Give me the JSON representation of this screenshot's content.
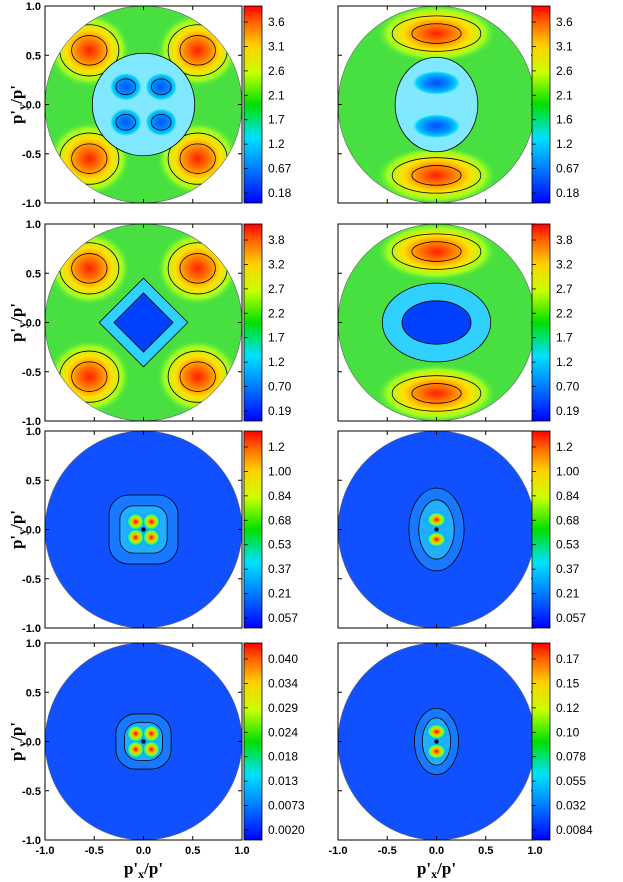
{
  "figure": {
    "axis_labels": {
      "ylabel_main": "p'",
      "ylabel_sub": "y",
      "ylabel_tail": "/p'",
      "xlabel_main": "p'",
      "xlabel_sub": "x",
      "xlabel_tail": "/p'"
    },
    "y_ticks": [
      "1.0",
      "0.5",
      "0.0",
      "-0.5",
      "-1.0"
    ],
    "x_ticks": [
      "-1.0",
      "-0.5",
      "0.0",
      "0.5",
      "1.0"
    ]
  },
  "chart_data": [
    {
      "type": "heatmap",
      "id": "r1c1",
      "pattern": "lobes4_center",
      "xlim": [
        -1,
        1
      ],
      "ylim": [
        -1,
        1
      ],
      "colorbar_ticks": [
        "3.6",
        "3.1",
        "2.6",
        "2.1",
        "1.7",
        "1.2",
        "0.67",
        "0.18"
      ]
    },
    {
      "type": "heatmap",
      "id": "r1c2",
      "pattern": "lobes2_center",
      "xlim": [
        -1,
        1
      ],
      "ylim": [
        -1,
        1
      ],
      "colorbar_ticks": [
        "3.6",
        "3.1",
        "2.6",
        "2.1",
        "1.6",
        "1.2",
        "0.67",
        "0.18"
      ]
    },
    {
      "type": "heatmap",
      "id": "r2c1",
      "pattern": "lobes4_diamond",
      "xlim": [
        -1,
        1
      ],
      "ylim": [
        -1,
        1
      ],
      "colorbar_ticks": [
        "3.8",
        "3.2",
        "2.7",
        "2.2",
        "1.7",
        "1.2",
        "0.70",
        "0.19"
      ]
    },
    {
      "type": "heatmap",
      "id": "r2c2",
      "pattern": "lobes2_ellipse",
      "xlim": [
        -1,
        1
      ],
      "ylim": [
        -1,
        1
      ],
      "colorbar_ticks": [
        "3.8",
        "3.2",
        "2.7",
        "2.2",
        "1.7",
        "1.2",
        "0.70",
        "0.19"
      ]
    },
    {
      "type": "heatmap",
      "id": "r3c1",
      "pattern": "center4_wide",
      "xlim": [
        -1,
        1
      ],
      "ylim": [
        -1,
        1
      ],
      "colorbar_ticks": [
        "1.2",
        "1.00",
        "0.84",
        "0.68",
        "0.53",
        "0.37",
        "0.21",
        "0.057"
      ]
    },
    {
      "type": "heatmap",
      "id": "r3c2",
      "pattern": "center2_wide",
      "xlim": [
        -1,
        1
      ],
      "ylim": [
        -1,
        1
      ],
      "colorbar_ticks": [
        "1.2",
        "1.00",
        "0.84",
        "0.68",
        "0.53",
        "0.37",
        "0.21",
        "0.057"
      ]
    },
    {
      "type": "heatmap",
      "id": "r4c1",
      "pattern": "center4_narrow",
      "xlim": [
        -1,
        1
      ],
      "ylim": [
        -1,
        1
      ],
      "colorbar_ticks": [
        "0.040",
        "0.034",
        "0.029",
        "0.024",
        "0.018",
        "0.013",
        "0.0073",
        "0.0020"
      ]
    },
    {
      "type": "heatmap",
      "id": "r4c2",
      "pattern": "center2_narrow",
      "xlim": [
        -1,
        1
      ],
      "ylim": [
        -1,
        1
      ],
      "colorbar_ticks": [
        "0.17",
        "0.15",
        "0.12",
        "0.10",
        "0.078",
        "0.055",
        "0.032",
        "0.0084"
      ]
    }
  ]
}
